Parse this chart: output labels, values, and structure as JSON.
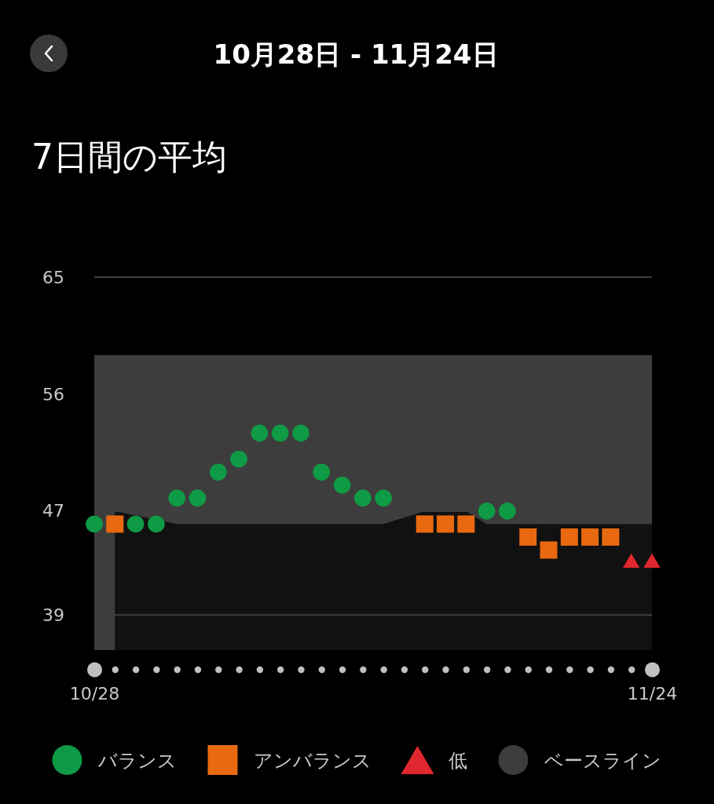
{
  "chart_data": {
    "type": "scatter",
    "title": "10月28日 - 11月24日",
    "subtitle": "7日間の平均",
    "categories": [
      "10/28",
      null,
      null,
      null,
      null,
      null,
      null,
      null,
      null,
      null,
      null,
      null,
      null,
      null,
      null,
      null,
      null,
      null,
      null,
      null,
      null,
      null,
      null,
      null,
      null,
      null,
      null,
      "11/24"
    ],
    "ylim": [
      36.3,
      65
    ],
    "yticks": [
      39,
      47,
      56,
      65
    ],
    "grid": "y",
    "legend": "bottom",
    "series": [
      {
        "name": "バランス",
        "color": "#0f9a45",
        "marker": "circle",
        "values": [
          46,
          null,
          46,
          46,
          48,
          48,
          50,
          51,
          53,
          53,
          53,
          50,
          49,
          48,
          48,
          null,
          null,
          null,
          null,
          47,
          47,
          null,
          null,
          null,
          null,
          null,
          null,
          null
        ]
      },
      {
        "name": "アンバランス",
        "color": "#e8690f",
        "marker": "square",
        "values": [
          null,
          46,
          null,
          null,
          null,
          null,
          null,
          null,
          null,
          null,
          null,
          null,
          null,
          null,
          null,
          null,
          46,
          46,
          46,
          null,
          null,
          45,
          44,
          45,
          45,
          45,
          null,
          null
        ]
      },
      {
        "name": "低",
        "color": "#e0262e",
        "marker": "triangle",
        "values": [
          null,
          null,
          null,
          null,
          null,
          null,
          null,
          null,
          null,
          null,
          null,
          null,
          null,
          null,
          null,
          null,
          null,
          null,
          null,
          null,
          null,
          null,
          null,
          null,
          null,
          null,
          43,
          43
        ]
      },
      {
        "name": "ベースライン",
        "type": "area",
        "color": "#3d3d3d",
        "values": [
          59,
          59,
          59,
          59,
          59,
          59,
          59,
          59,
          59,
          59,
          59,
          59,
          59,
          59,
          59,
          59,
          59,
          59,
          59,
          59,
          59,
          59,
          59,
          59,
          59,
          59,
          59,
          59
        ]
      },
      {
        "type": "area",
        "color": "#111111",
        "values": [
          null,
          47,
          null,
          null,
          46,
          46,
          46,
          46,
          46,
          46,
          46,
          46,
          46,
          46,
          46,
          46.5,
          47,
          47,
          47,
          46,
          46,
          46,
          46,
          46,
          46,
          46,
          46,
          46
        ]
      }
    ]
  }
}
